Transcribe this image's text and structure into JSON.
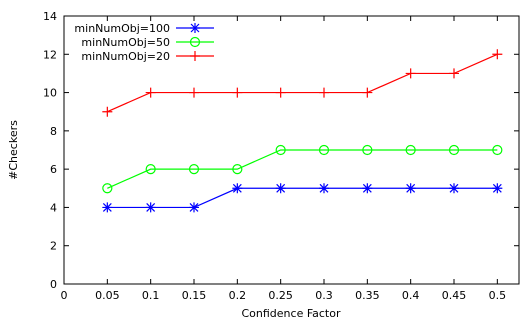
{
  "chart_data": {
    "type": "line",
    "title": "",
    "xlabel": "Confidence Factor",
    "ylabel": "#Checkers",
    "xlim": [
      0,
      0.525
    ],
    "ylim": [
      0,
      14
    ],
    "xticks": [
      "0",
      "0.05",
      "0.1",
      "0.15",
      "0.2",
      "0.25",
      "0.3",
      "0.35",
      "0.4",
      "0.45",
      "0.5"
    ],
    "yticks": [
      "0",
      "2",
      "4",
      "6",
      "8",
      "10",
      "12",
      "14"
    ],
    "x": [
      0.05,
      0.1,
      0.15,
      0.2,
      0.25,
      0.3,
      0.35,
      0.4,
      0.45,
      0.5
    ],
    "grid": false,
    "legend_position": "top-left",
    "series": [
      {
        "name": "minNumObj=100",
        "color": "#0000ff",
        "marker": "star",
        "values": [
          4,
          4,
          4,
          5,
          5,
          5,
          5,
          5,
          5,
          5
        ]
      },
      {
        "name": "minNumObj=50",
        "color": "#00ff00",
        "marker": "circle",
        "values": [
          5,
          6,
          6,
          6,
          7,
          7,
          7,
          7,
          7,
          7
        ]
      },
      {
        "name": "minNumObj=20",
        "color": "#ff0000",
        "marker": "plus",
        "values": [
          9,
          10,
          10,
          10,
          10,
          10,
          10,
          11,
          11,
          12
        ]
      }
    ]
  }
}
